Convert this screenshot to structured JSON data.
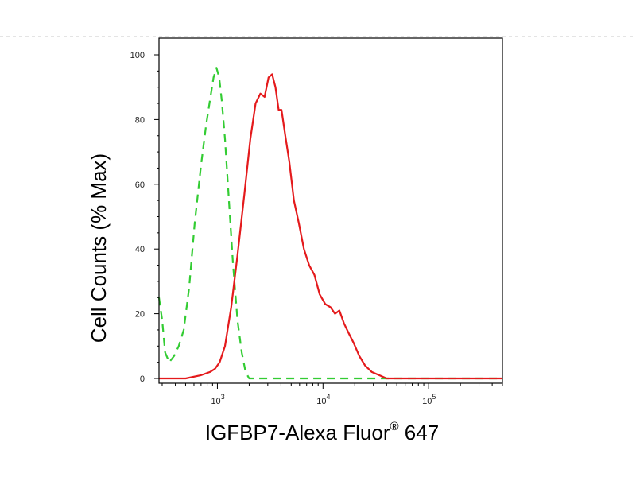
{
  "chart_data": {
    "type": "line",
    "title": "",
    "xlabel": "IGFBP7-Alexa Fluor",
    "xlabel_superscript": "®",
    "xlabel_suffix": " 647",
    "ylabel": "Cell Counts (% Max)",
    "x_scale": "log",
    "xlim": [
      280,
      500000
    ],
    "ylim": [
      0,
      100
    ],
    "x_ticks": [
      {
        "value": 1000,
        "base": "10",
        "exp": "3"
      },
      {
        "value": 10000,
        "base": "10",
        "exp": "4"
      },
      {
        "value": 100000,
        "base": "10",
        "exp": "5"
      }
    ],
    "y_ticks": [
      0,
      20,
      40,
      60,
      80,
      100
    ],
    "grid": false,
    "colors": {
      "sample": "#e41a1c",
      "control": "#33cc33"
    },
    "series": [
      {
        "style": "dashed",
        "color": "#33cc33",
        "x": [
          280,
          300,
          320,
          350,
          390,
          430,
          480,
          540,
          610,
          700,
          780,
          850,
          920,
          980,
          1040,
          1100,
          1180,
          1280,
          1400,
          1550,
          1700,
          1850,
          2000,
          2300,
          3000,
          5000,
          10000,
          30000,
          100000,
          500000
        ],
        "y": [
          25,
          18,
          8,
          5,
          7,
          10,
          15,
          28,
          48,
          66,
          78,
          86,
          93,
          96,
          93,
          86,
          74,
          56,
          36,
          18,
          8,
          2,
          0,
          0,
          0,
          0,
          0,
          0,
          0,
          0
        ]
      },
      {
        "style": "solid",
        "color": "#e41a1c",
        "x": [
          280,
          500,
          700,
          850,
          950,
          1050,
          1180,
          1350,
          1550,
          1800,
          2050,
          2300,
          2550,
          2800,
          3050,
          3300,
          3550,
          3800,
          4050,
          4400,
          4800,
          5300,
          5900,
          6600,
          7400,
          8300,
          9300,
          10500,
          11800,
          13000,
          14300,
          15800,
          17500,
          19500,
          22000,
          25000,
          29000,
          34000,
          40000,
          50000,
          500000
        ],
        "y": [
          0,
          0,
          1,
          2,
          3,
          5,
          10,
          22,
          38,
          57,
          74,
          85,
          88,
          87,
          93,
          94,
          90,
          83,
          83,
          75,
          67,
          55,
          48,
          40,
          35,
          32,
          26,
          23,
          22,
          20,
          21,
          17,
          14,
          11,
          7,
          4,
          2,
          1,
          0,
          0,
          0
        ]
      }
    ]
  }
}
